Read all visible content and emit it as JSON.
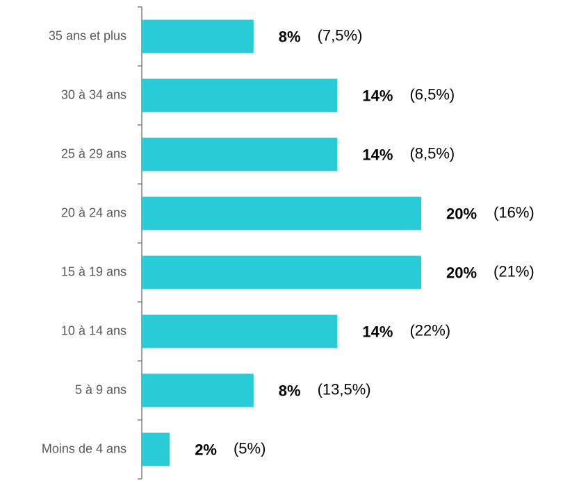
{
  "chart_data": {
    "type": "bar",
    "orientation": "horizontal",
    "categories": [
      "35 ans et plus",
      "30 à 34 ans",
      "25 à 29 ans",
      "20 à 24 ans",
      "15 à 19 ans",
      "10 à 14 ans",
      "5 à 9 ans",
      "Moins de 4 ans"
    ],
    "values": [
      8,
      14,
      14,
      20,
      20,
      14,
      8,
      2
    ],
    "value_labels": [
      "8%",
      "14%",
      "14%",
      "20%",
      "20%",
      "14%",
      "8%",
      "2%"
    ],
    "annotations": [
      "(7,5%)",
      "(6,5%)",
      "(8,5%)",
      "(16%)",
      "(21%)",
      "(22%)",
      "(13,5%)",
      "(5%)"
    ],
    "color": "#29ccd6",
    "xlim": [
      0,
      20
    ]
  }
}
